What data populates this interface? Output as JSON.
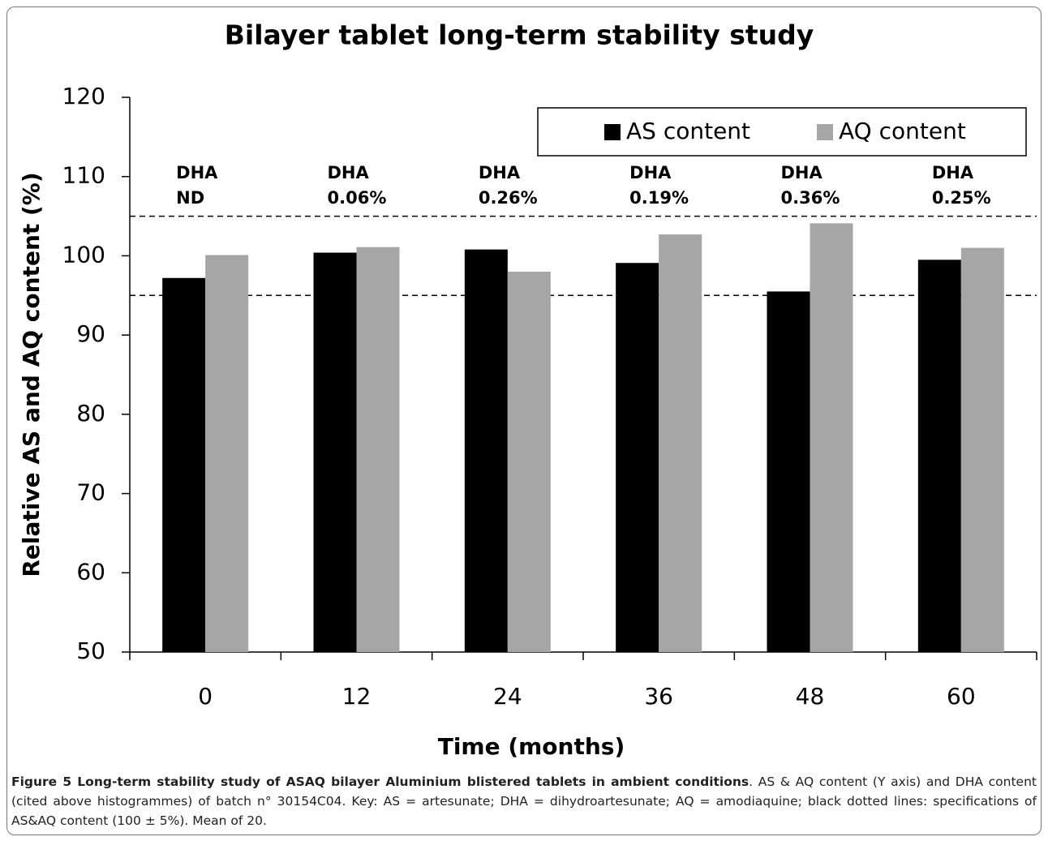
{
  "chart_data": {
    "type": "bar",
    "title": "Bilayer tablet long-term stability study",
    "x_label": "Time (months)",
    "y_label": "Relative AS and AQ content (%)",
    "categories": [
      "0",
      "12",
      "24",
      "36",
      "48",
      "60"
    ],
    "series": [
      {
        "name": "AS content",
        "color": "#000000",
        "values": [
          97.2,
          100.4,
          100.8,
          99.1,
          95.5,
          99.5
        ]
      },
      {
        "name": "AQ content",
        "color": "#a6a6a6",
        "values": [
          100.1,
          101.1,
          98.0,
          102.7,
          104.1,
          101.0
        ]
      }
    ],
    "annotations": [
      [
        "DHA",
        "ND"
      ],
      [
        "DHA",
        "0.06%"
      ],
      [
        "DHA",
        "0.26%"
      ],
      [
        "DHA",
        "0.19%"
      ],
      [
        "DHA",
        "0.36%"
      ],
      [
        "DHA",
        "0.25%"
      ]
    ],
    "reference_lines": [
      105,
      95
    ],
    "ylim": [
      50,
      120
    ],
    "yticks": [
      50,
      60,
      70,
      80,
      90,
      100,
      110,
      120
    ],
    "legend": "top-right",
    "grid": false
  },
  "caption": {
    "title": "Figure 5 Long-term stability study of ASAQ bilayer Aluminium blistered tablets in ambient conditions",
    "text": ". AS & AQ content (Y axis) and DHA content (cited above histogrammes) of batch n° 30154C04. Key: AS = artesunate; DHA = dihydroartesunate; AQ = amodiaquine; black dotted lines: specifications of AS&AQ content (100 ± 5%). Mean of 20."
  }
}
